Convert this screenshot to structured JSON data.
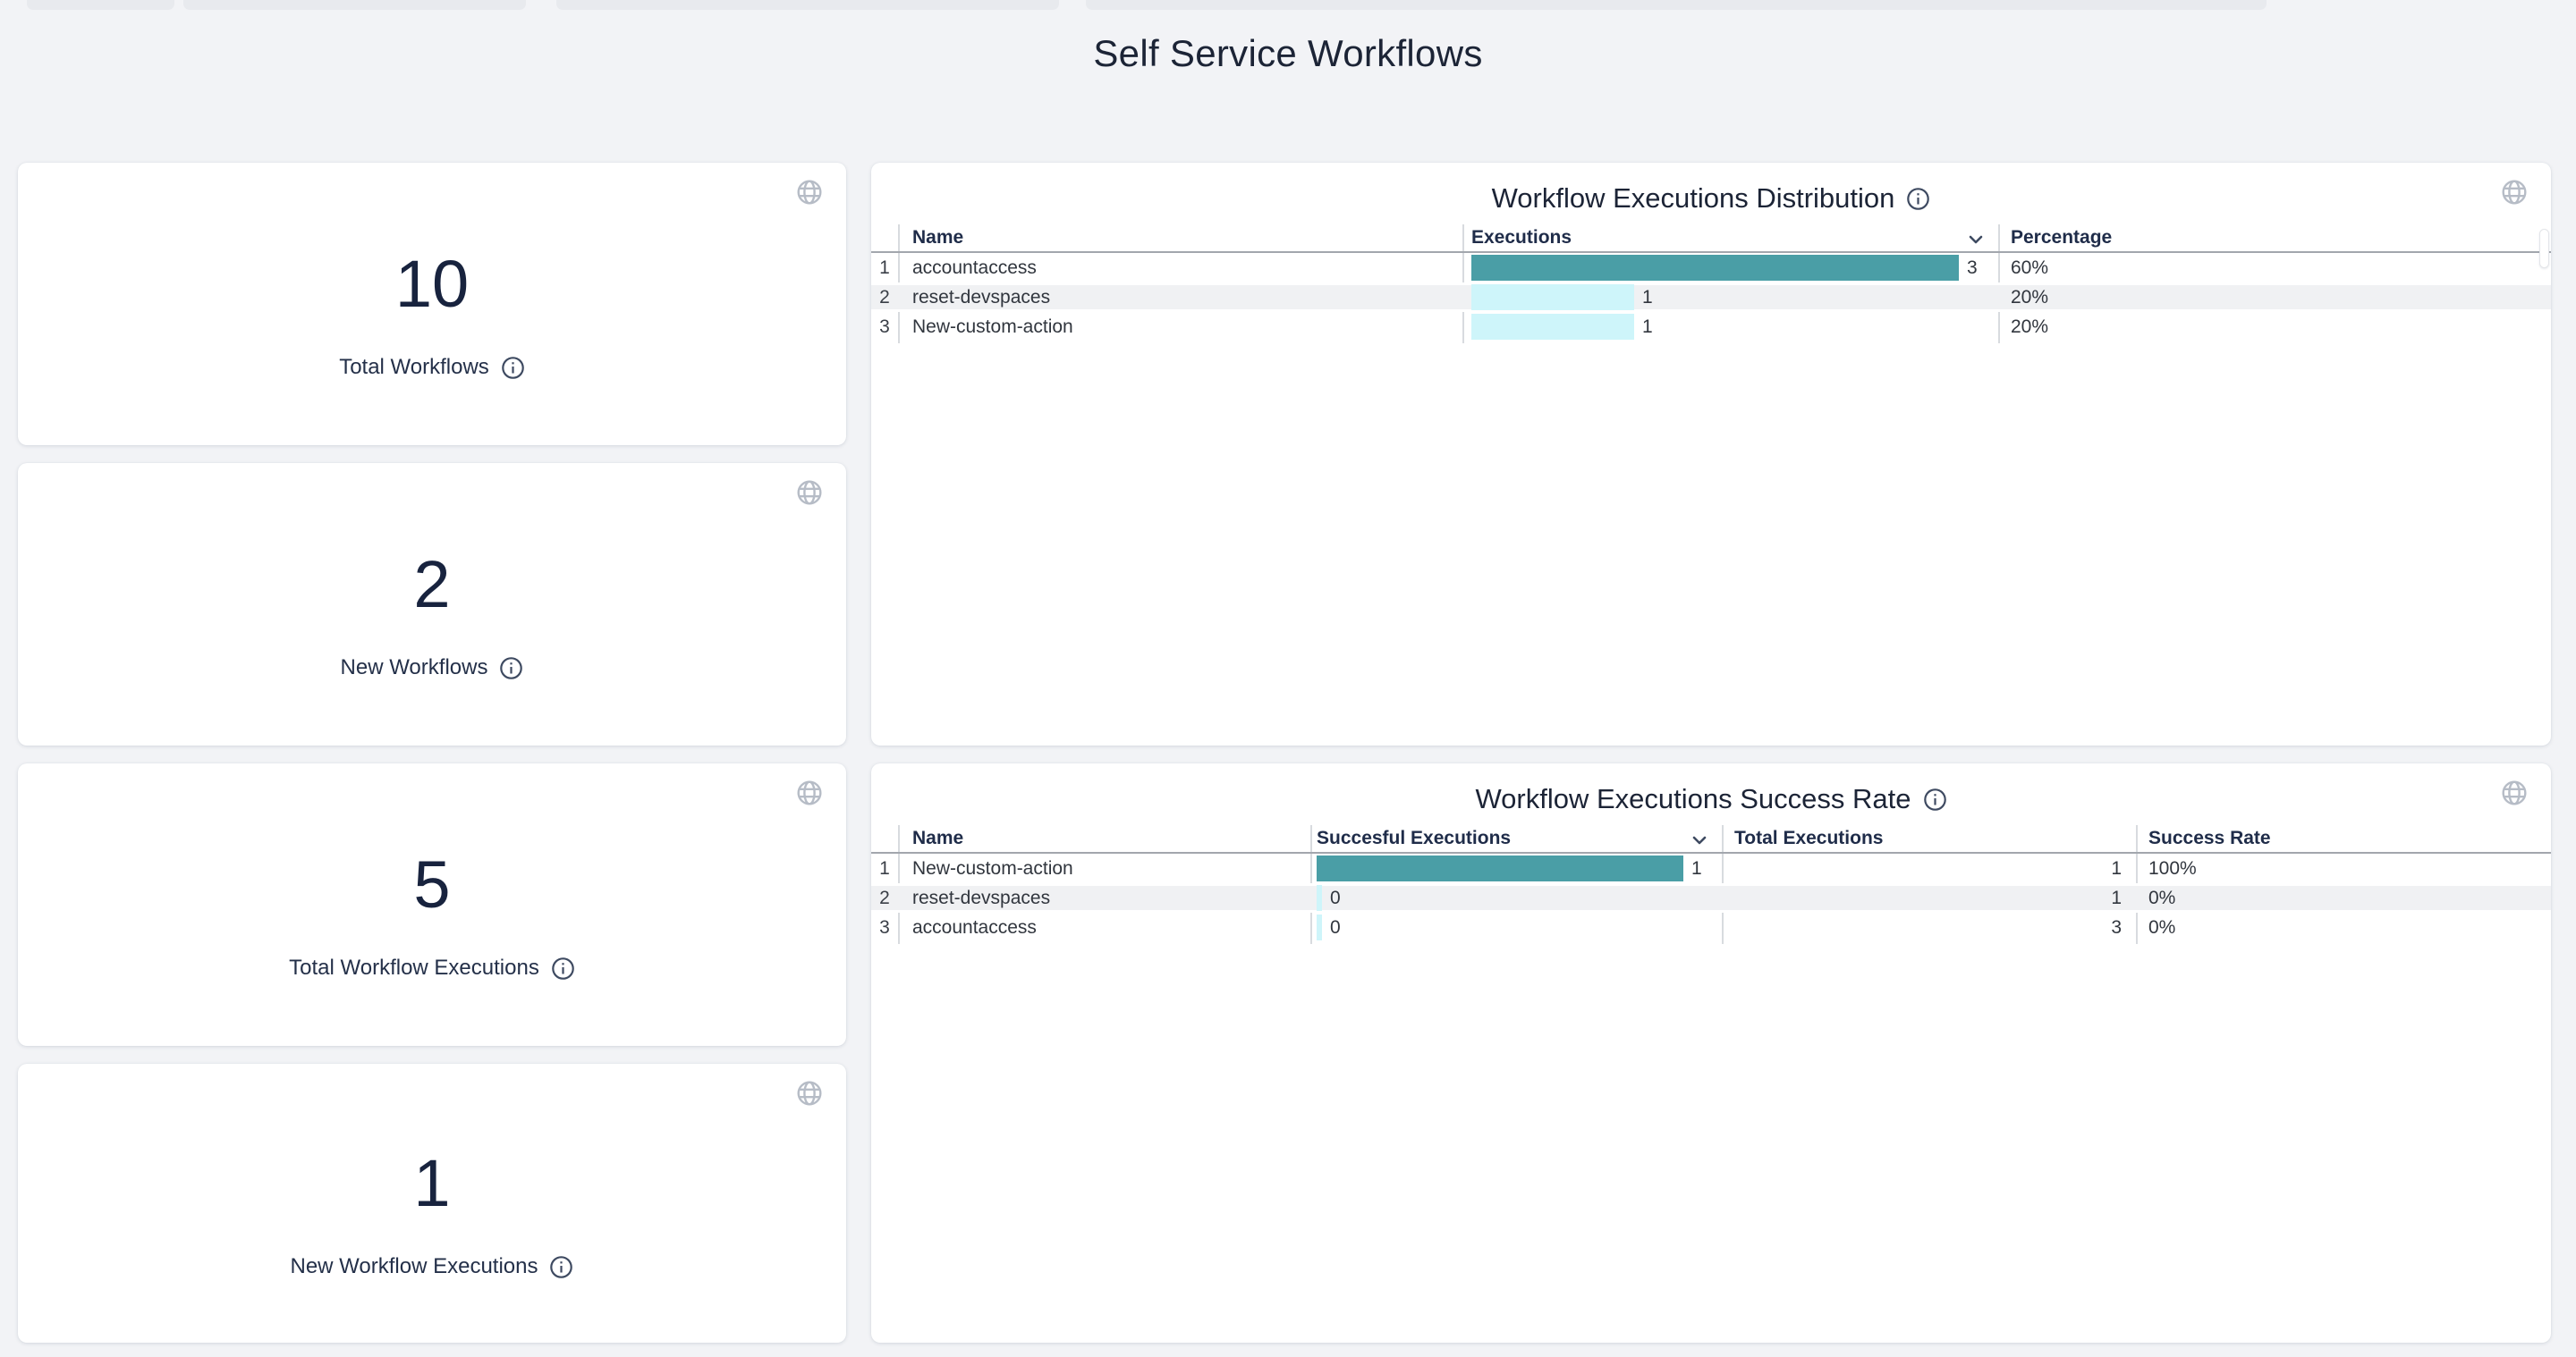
{
  "page": {
    "title": "Self Service Workflows"
  },
  "colors": {
    "accent_teal": "#4A9EA6",
    "accent_cyan": "#CEF5FA",
    "text_navy": "#1C2436",
    "background": "#F2F3F6",
    "stripe": "#F0F1F3"
  },
  "stat_cards": [
    {
      "value": "10",
      "label": "Total Workflows"
    },
    {
      "value": "2",
      "label": "New Workflows"
    },
    {
      "value": "5",
      "label": "Total Workflow Executions"
    },
    {
      "value": "1",
      "label": "New Workflow Executions"
    }
  ],
  "distribution_table": {
    "title": "Workflow Executions Distribution",
    "columns": {
      "name": "Name",
      "executions": "Executions",
      "percentage": "Percentage"
    },
    "sort": {
      "column": "Executions",
      "direction": "desc"
    },
    "max_executions": 3,
    "rows": [
      {
        "index": "1",
        "name": "accountaccess",
        "executions": 3,
        "percentage": "60%"
      },
      {
        "index": "2",
        "name": "reset-devspaces",
        "executions": 1,
        "percentage": "20%"
      },
      {
        "index": "3",
        "name": "New-custom-action",
        "executions": 1,
        "percentage": "20%"
      }
    ]
  },
  "success_table": {
    "title": "Workflow Executions Success Rate",
    "columns": {
      "name": "Name",
      "successful": "Succesful Executions",
      "total": "Total Executions",
      "rate": "Success Rate"
    },
    "sort": {
      "column": "Succesful Executions",
      "direction": "desc"
    },
    "max_successful": 1,
    "rows": [
      {
        "index": "1",
        "name": "New-custom-action",
        "successful": 1,
        "total": "1",
        "rate": "100%"
      },
      {
        "index": "2",
        "name": "reset-devspaces",
        "successful": 0,
        "total": "1",
        "rate": "0%"
      },
      {
        "index": "3",
        "name": "accountaccess",
        "successful": 0,
        "total": "3",
        "rate": "0%"
      }
    ]
  }
}
